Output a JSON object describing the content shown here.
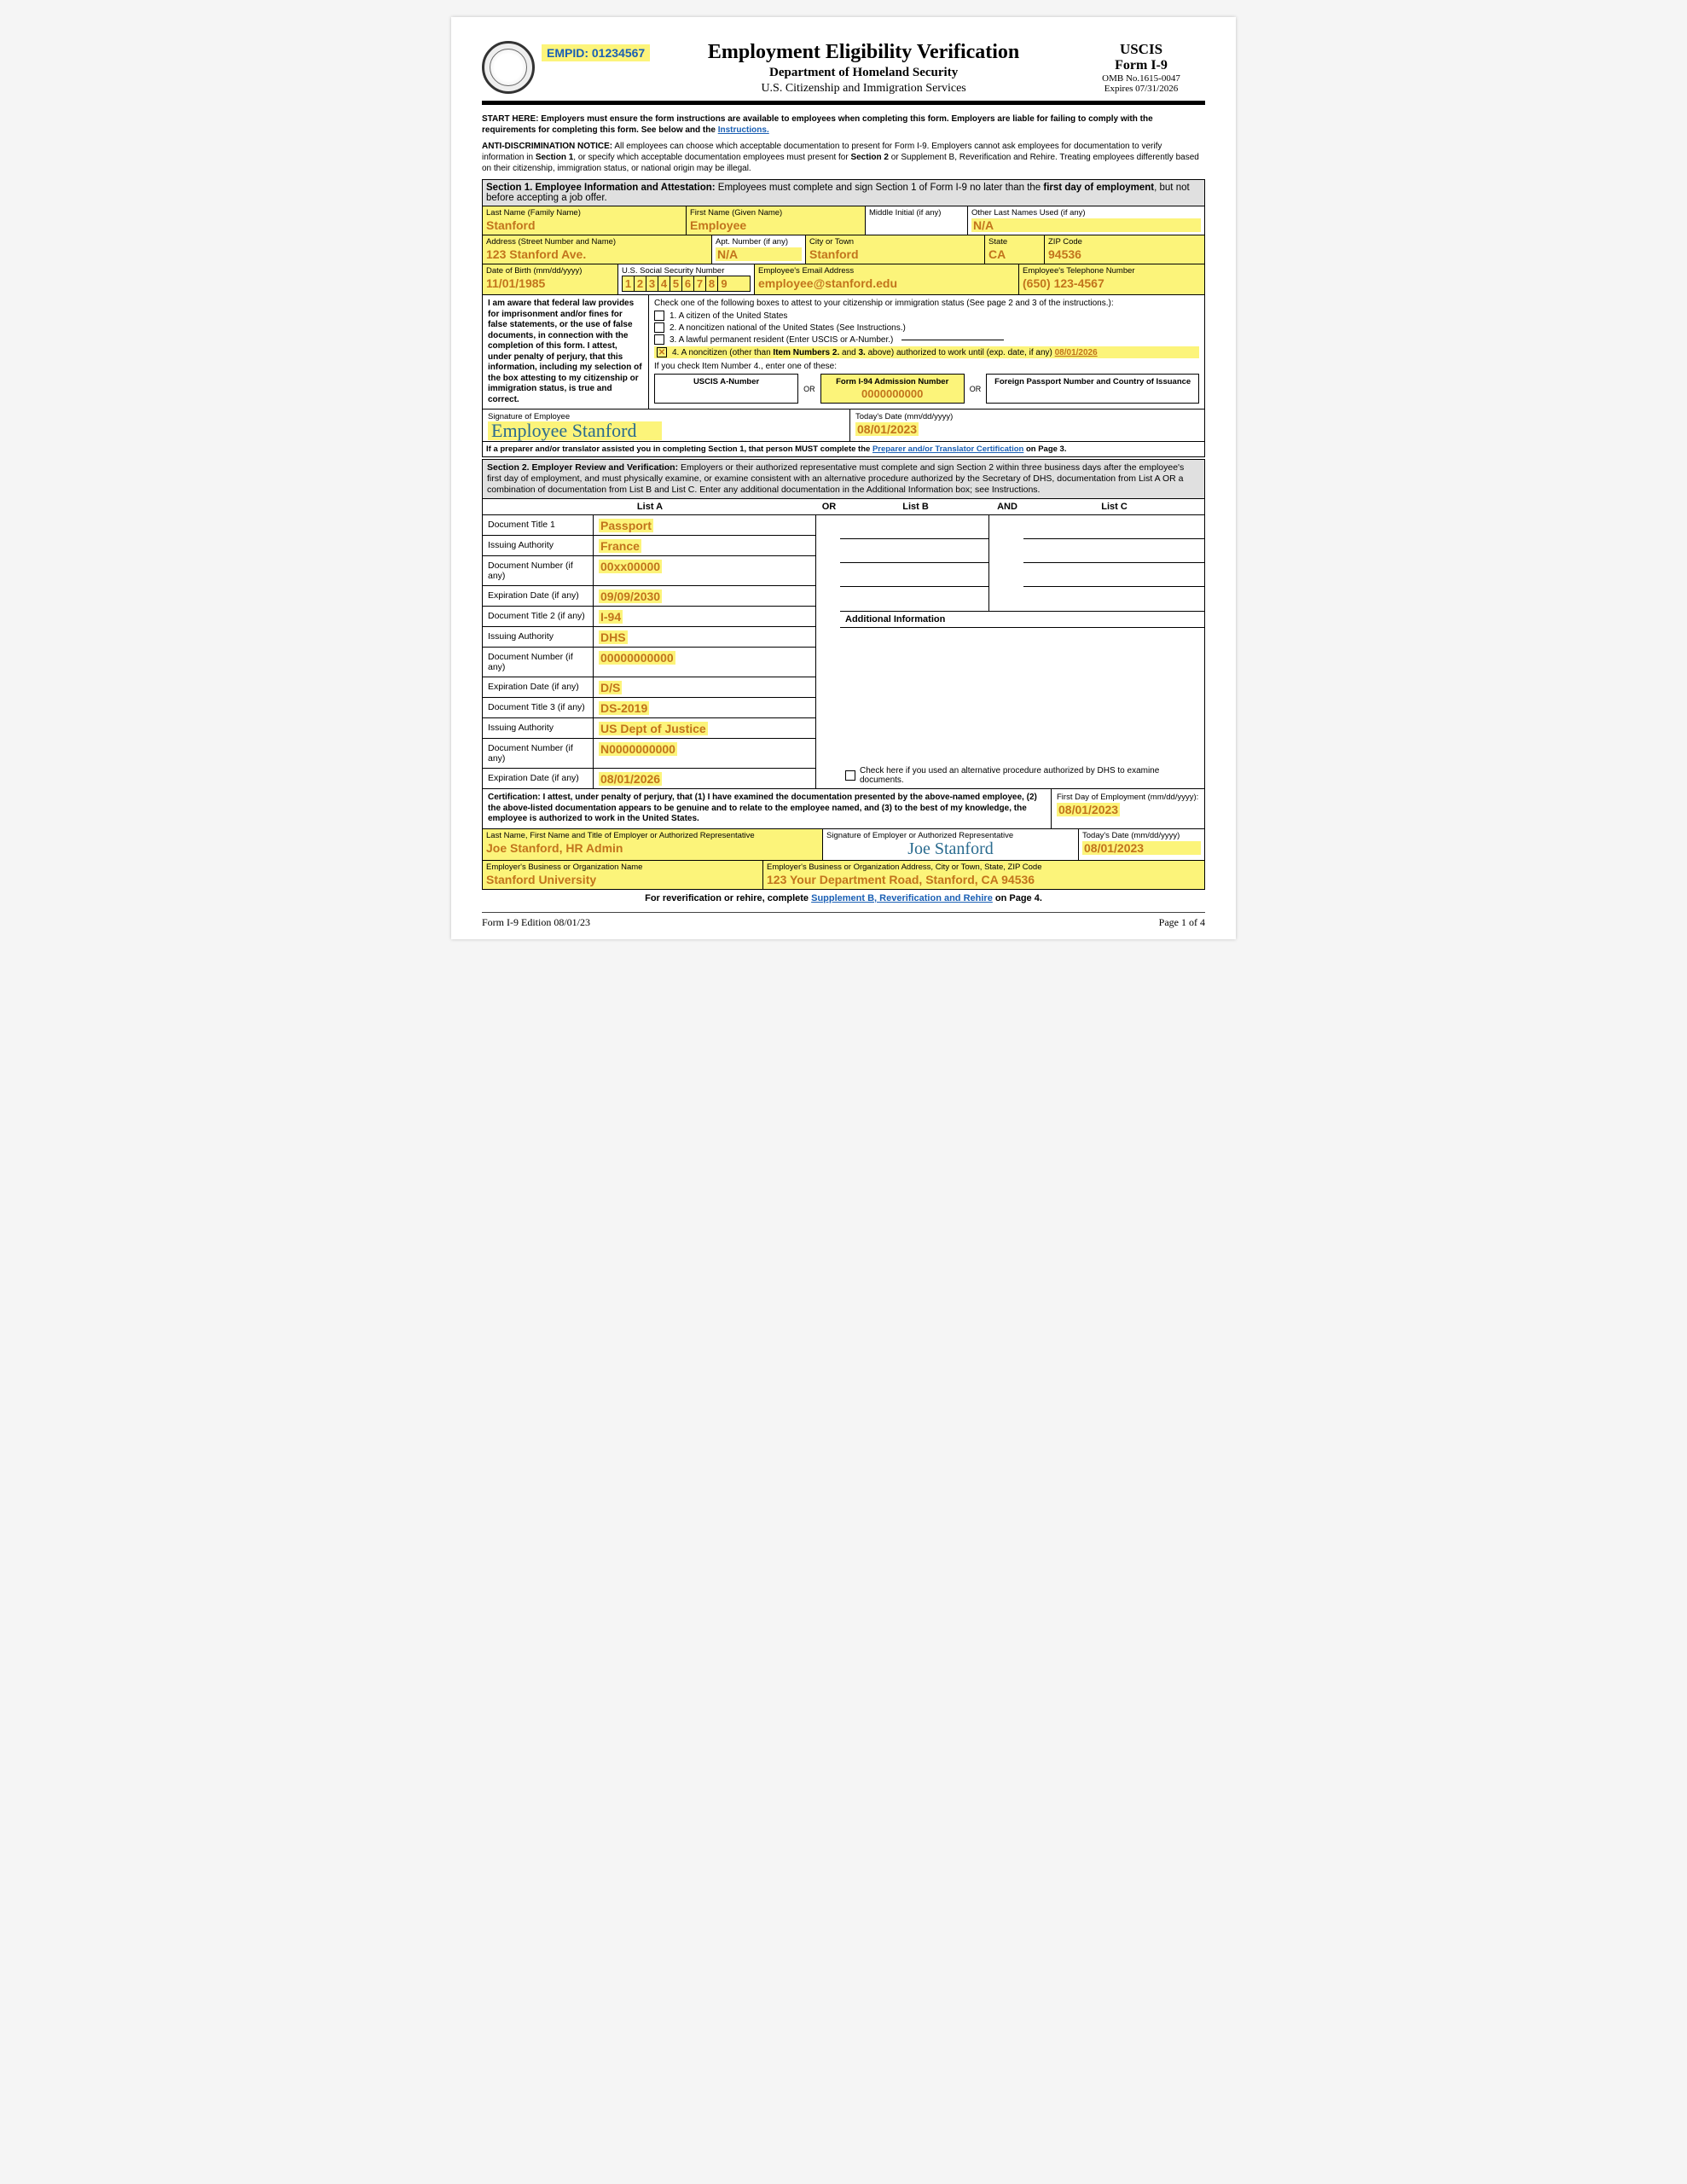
{
  "header": {
    "empid": "EMPID: 01234567",
    "title": "Employment Eligibility Verification",
    "dept": "Department of Homeland Security",
    "agency": "U.S. Citizenship and Immigration Services",
    "uscis_l1": "USCIS",
    "uscis_l2": "Form I-9",
    "omb": "OMB No.1615-0047",
    "expires": "Expires 07/31/2026"
  },
  "intro": {
    "start": "START HERE:  Employers must ensure the form instructions are available to employees when completing this form.  Employers are liable for failing to comply with the requirements for completing this form.  See below and the ",
    "instr_link": "Instructions.",
    "anti": "ANTI-DISCRIMINATION NOTICE:  All employees can choose which acceptable documentation to present for Form I-9.  Employers cannot ask employees for documentation to verify information in Section 1, or specify which acceptable documentation employees must present for Section 2 or Supplement B, Reverification and Rehire.  Treating employees differently based on their citizenship, immigration status, or national origin may be illegal."
  },
  "s1": {
    "heading_a": "Section 1. Employee Information and Attestation: ",
    "heading_b": "Employees must complete and sign Section 1 of Form I-9 no later than the ",
    "heading_c": "first day of employment",
    "heading_d": ", but not before accepting a job offer.",
    "last_name_lbl": "Last Name (Family Name)",
    "last_name": "Stanford",
    "first_name_lbl": "First Name (Given Name)",
    "first_name": "Employee",
    "mi_lbl": "Middle Initial (if any)",
    "mi": "",
    "other_lbl": "Other Last Names Used (if any)",
    "other": "N/A",
    "addr_lbl": "Address (Street Number and Name)",
    "addr": "123 Stanford Ave.",
    "apt_lbl": "Apt. Number (if any)",
    "apt": "N/A",
    "city_lbl": "City or Town",
    "city": "Stanford",
    "state_lbl": "State",
    "state": "CA",
    "zip_lbl": "ZIP Code",
    "zip": "94536",
    "dob_lbl": "Date of Birth (mm/dd/yyyy)",
    "dob": "11/01/1985",
    "ssn_lbl": "U.S. Social Security Number",
    "ssn": [
      "1",
      "2",
      "3",
      "4",
      "5",
      "6",
      "7",
      "8",
      "9"
    ],
    "email_lbl": "Employee's Email Address",
    "email": "employee@stanford.edu",
    "phone_lbl": "Employee's Telephone Number",
    "phone": "(650) 123-4567",
    "attest_text": "I am aware that federal law provides for imprisonment and/or fines for false statements, or the use of false documents, in connection with the completion of this form. I attest, under penalty of perjury, that this information, including my selection of the box attesting to my citizenship or immigration status, is true and correct.",
    "check_intro": "Check one of the following boxes to attest to your citizenship or immigration status (See page 2 and 3 of the instructions.):",
    "opt1": "1.   A citizen of the United States",
    "opt2": "2.   A noncitizen national of the United States (See Instructions.)",
    "opt3": "3.   A lawful permanent resident (Enter USCIS or A-Number.)",
    "opt4_a": "4.   A noncitizen (other than ",
    "opt4_b": "Item Numbers 2.",
    "opt4_c": " and ",
    "opt4_d": "3.",
    "opt4_e": " above) authorized to work until (exp. date, if any) ",
    "opt4_date": "08/01/2026",
    "num4_intro": "If you check Item Number 4., enter one of these:",
    "anum": "USCIS A-Number",
    "i94_lbl": "Form I-94 Admission Number",
    "i94": "0000000000",
    "foreign": "Foreign Passport Number and Country of Issuance",
    "or": "OR",
    "sig_lbl": "Signature of Employee",
    "sig": "Employee Stanford",
    "date_lbl": "Today's Date (mm/dd/yyyy)",
    "date": "08/01/2023",
    "preparer": "If a preparer and/or translator assisted you in completing Section 1, that person MUST complete the ",
    "preparer_link": "Preparer and/or Translator Certification",
    "preparer_end": " on Page 3."
  },
  "s2": {
    "heading_a": "Section 2. Employer Review and Verification: ",
    "heading_b": "Employers or their authorized representative must complete and sign Section 2 within three business days after the employee's first day of employment, and must physically examine, or examine consistent with an alternative procedure authorized by the Secretary of DHS, documentation from List A OR a combination of documentation from List B and List C.  Enter any additional documentation in the Additional Information box; see Instructions.",
    "listA": "List A",
    "or": "OR",
    "listB": "List B",
    "and": "AND",
    "listC": "List C",
    "rows": [
      {
        "lbl": "Document Title 1",
        "val": "Passport"
      },
      {
        "lbl": "Issuing Authority",
        "val": "France"
      },
      {
        "lbl": "Document Number (if any)",
        "val": "00xx00000"
      },
      {
        "lbl": "Expiration Date (if any)",
        "val": "09/09/2030"
      },
      {
        "lbl": "Document Title 2 (if any)",
        "val": "I-94"
      },
      {
        "lbl": "Issuing Authority",
        "val": "DHS"
      },
      {
        "lbl": "Document Number (if any)",
        "val": "00000000000"
      },
      {
        "lbl": "Expiration Date (if any)",
        "val": "D/S"
      },
      {
        "lbl": "Document Title 3 (if any)",
        "val": "DS-2019"
      },
      {
        "lbl": "Issuing Authority",
        "val": "US Dept of Justice"
      },
      {
        "lbl": "Document Number (if any)",
        "val": "N0000000000"
      },
      {
        "lbl": "Expiration Date (if any)",
        "val": "08/01/2026"
      }
    ],
    "addl": "Additional Information",
    "altproc": "Check here if you used an alternative procedure authorized by DHS to examine documents.",
    "cert": "Certification: I attest, under penalty of perjury, that (1) I have examined the documentation presented by the above-named employee, (2) the above-listed documentation appears to be genuine and to relate to the employee named, and (3) to the best of my knowledge, the employee is authorized to work in the United States.",
    "first_day_lbl": "First Day of Employment (mm/dd/yyyy):",
    "first_day": "08/01/2023",
    "emp_name_lbl": "Last Name, First Name and Title of Employer or Authorized Representative",
    "emp_name": "Joe Stanford, HR Admin",
    "emp_sig_lbl": "Signature of Employer or Authorized Representative",
    "emp_sig": "Joe Stanford",
    "emp_date_lbl": "Today's Date (mm/dd/yyyy)",
    "emp_date": "08/01/2023",
    "org_lbl": "Employer's Business or Organization Name",
    "org": "Stanford University",
    "org_addr_lbl": "Employer's Business or Organization Address, City or Town, State, ZIP Code",
    "org_addr": "123 Your Department Road, Stanford, CA 94536",
    "reverif_a": "For reverification or rehire, complete ",
    "reverif_link": "Supplement B, Reverification and Rehire",
    "reverif_b": " on Page 4."
  },
  "footer": {
    "left": "Form I-9   Edition   08/01/23",
    "right": "Page 1 of 4"
  },
  "colors": {
    "highlight": "#fcf47a",
    "fill_text": "#c2741c",
    "link": "#1a5fb4",
    "sig": "#2a6b8f"
  }
}
